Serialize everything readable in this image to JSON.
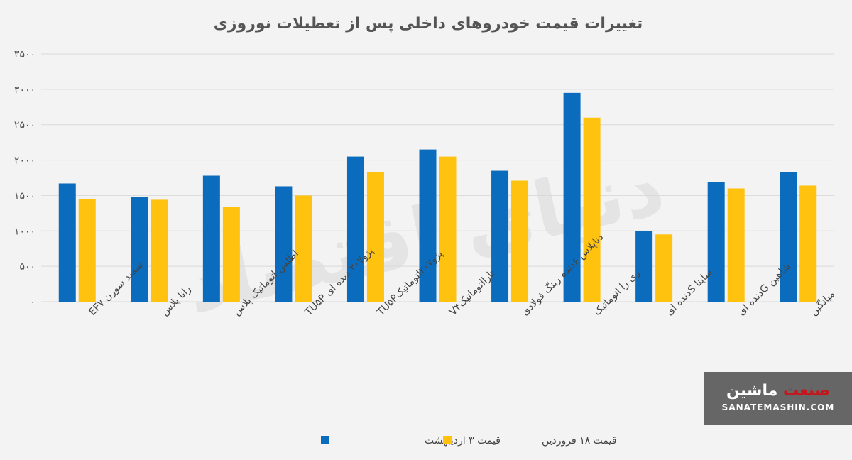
{
  "chart_data": {
    "type": "bar",
    "title": "تغییرات قیمت خودروهای داخلی پس از تعطیلات نوروزی",
    "categories": [
      "سمند سورن EF۷",
      "رانا پلاس",
      "اطلس اتوماتیک پلاس",
      "پژو۲۰۷ دنده ای TU۵P",
      "پژو۲۰۷اتوماتیکTU۵P",
      "تارااتوماتیکV۴",
      "دناپلاس ۶دنده رینگ فولادی",
      "ری را اتوماتیک",
      "ساینا Sدنده ای",
      "شاهین Gدنده ای",
      "میانگین"
    ],
    "series": [
      {
        "name": "قیمت ۳ اردیبهشت",
        "color": "#0b6cbd",
        "values": [
          1670,
          1480,
          1780,
          1630,
          2050,
          2150,
          1850,
          2950,
          1000,
          1690,
          1830
        ]
      },
      {
        "name": "قیمت ۱۸ فروردین",
        "color": "#ffc20e",
        "values": [
          1450,
          1440,
          1340,
          1500,
          1830,
          2050,
          1710,
          2600,
          950,
          1600,
          1640
        ]
      }
    ],
    "ylim": [
      0,
      3500
    ],
    "yticks": [
      "۰",
      "۵۰۰",
      "۱۰۰۰",
      "۱۵۰۰",
      "۲۰۰۰",
      "۲۵۰۰",
      "۳۰۰۰",
      "۳۵۰۰"
    ],
    "ytick_values": [
      0,
      500,
      1000,
      1500,
      2000,
      2500,
      3000,
      3500
    ],
    "grid": true,
    "legend_position": "bottom"
  },
  "watermark": {
    "text": "دنیای اقتصاد"
  },
  "logo": {
    "name_main": "ماشین",
    "name_accent": "صنعت",
    "url": "SANATEMASHIN.COM"
  }
}
